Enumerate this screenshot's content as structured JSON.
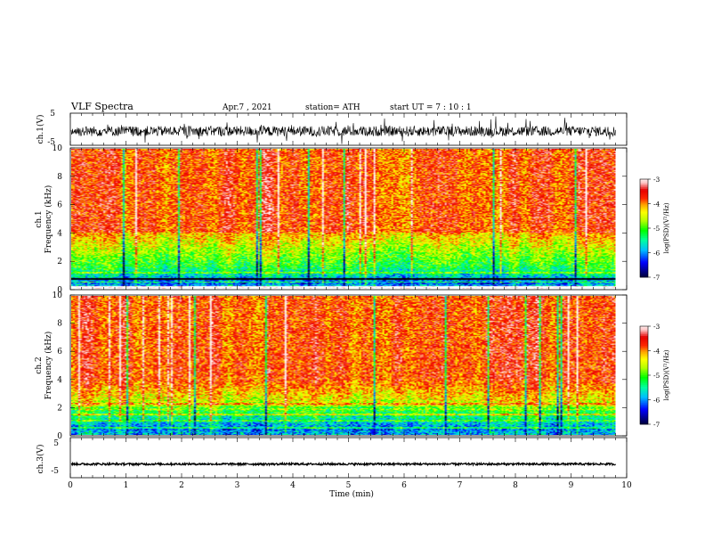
{
  "header": {
    "title": "VLF  Spectra",
    "date": "Apr.7  , 2021",
    "station": "station= ATH",
    "start": "start  UT  =   7  : 10 : 1"
  },
  "chart_data": [
    {
      "type": "line",
      "panel": "ch1-waveform",
      "ylabel": "ch.1(V)",
      "ylim": [
        -5,
        5
      ],
      "yticks": [
        "5",
        "-5"
      ],
      "xlim": [
        0,
        10
      ],
      "trace_color": "#000000"
    },
    {
      "type": "heatmap",
      "panel": "ch1-spectrogram",
      "ylabel_top": "ch.1",
      "ylabel": "Frequency  (kHz)",
      "ylim": [
        0,
        10
      ],
      "yticks": [
        "0",
        "2",
        "4",
        "6",
        "8",
        "10"
      ],
      "xlim": [
        0,
        9.8
      ],
      "colorbar": {
        "label": "log(PSD)(V²/Hz)",
        "ticks": [
          "-3",
          "-4",
          "-5",
          "-6",
          "-7"
        ],
        "range": [
          -7,
          -3
        ]
      }
    },
    {
      "type": "heatmap",
      "panel": "ch2-spectrogram",
      "ylabel_top": "ch.2",
      "ylabel": "Frequency  (kHz)",
      "ylim": [
        0,
        10
      ],
      "yticks": [
        "0",
        "2",
        "4",
        "6",
        "8",
        "10"
      ],
      "xlim": [
        0,
        9.8
      ],
      "colorbar": {
        "label": "log(PSD)(V²/Hz)",
        "ticks": [
          "-3",
          "-4",
          "-5",
          "-6",
          "-7"
        ],
        "range": [
          -7,
          -3
        ]
      }
    },
    {
      "type": "line",
      "panel": "ch3-waveform",
      "ylabel": "ch.3(V)",
      "ylim": [
        -5,
        5
      ],
      "yticks": [
        "5",
        "-5"
      ],
      "xlim": [
        0,
        10
      ],
      "xlabel": "Time  (min)",
      "xticks": [
        "0",
        "1",
        "2",
        "3",
        "4",
        "5",
        "6",
        "7",
        "8",
        "9",
        "10"
      ],
      "trace_color": "#000000"
    }
  ],
  "colors": {
    "scale": [
      "#000000",
      "#00005a",
      "#0000ff",
      "#00c0ff",
      "#00ffa0",
      "#00ff00",
      "#b4ff00",
      "#ffff00",
      "#ffa500",
      "#ff3000",
      "#e80000",
      "#ffc8c8",
      "#ffffff"
    ]
  }
}
